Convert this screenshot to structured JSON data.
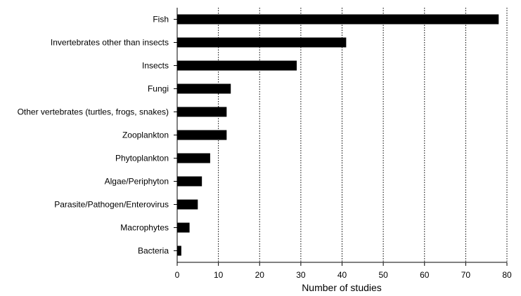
{
  "chart_data": {
    "type": "bar",
    "orientation": "horizontal",
    "title": "",
    "xlabel": "Number of studies",
    "ylabel": "",
    "xlim": [
      0,
      80
    ],
    "xticks": [
      0,
      10,
      20,
      30,
      40,
      50,
      60,
      70,
      80
    ],
    "grid": "vertical dotted",
    "legend": "none",
    "bar_color": "#000000",
    "categories": [
      "Fish",
      "Invertebrates other than insects",
      "Insects",
      "Fungi",
      "Other vertebrates (turtles, frogs, snakes)",
      "Zooplankton",
      "Phytoplankton",
      "Algae/Periphyton",
      "Parasite/Pathogen/Enterovirus",
      "Macrophytes",
      "Bacteria"
    ],
    "values": [
      78,
      41,
      29,
      13,
      12,
      12,
      8,
      6,
      5,
      3,
      1
    ]
  }
}
